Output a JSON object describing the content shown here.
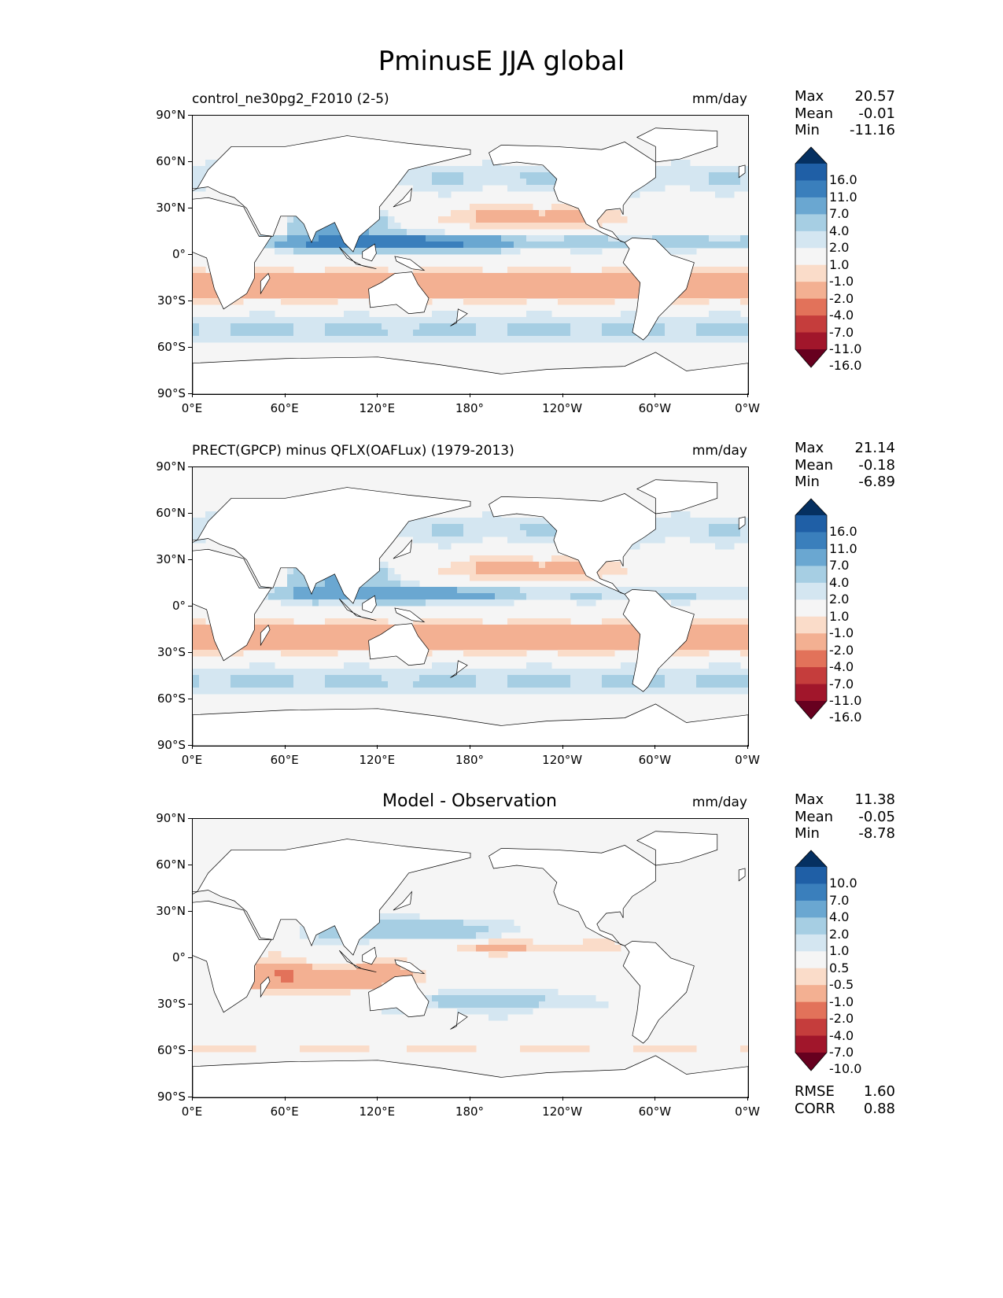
{
  "title": "PminusE JJA global",
  "panels": [
    {
      "left_title": "control_ne30pg2_F2010 (2-5)",
      "center_title": "",
      "units": "mm/day",
      "stats": [
        {
          "label": "Max",
          "value": "20.57"
        },
        {
          "label": "Mean",
          "value": "-0.01"
        },
        {
          "label": "Min",
          "value": "-11.16"
        }
      ],
      "colorbar_ticks": [
        "16.0",
        "11.0",
        "7.0",
        "4.0",
        "2.0",
        "1.0",
        "-1.0",
        "-2.0",
        "-4.0",
        "-7.0",
        "-11.0",
        "-16.0"
      ]
    },
    {
      "left_title": "PRECT(GPCP) minus QFLX(OAFLux) (1979-2013)",
      "center_title": "",
      "units": "mm/day",
      "stats": [
        {
          "label": "Max",
          "value": "21.14"
        },
        {
          "label": "Mean",
          "value": "-0.18"
        },
        {
          "label": "Min",
          "value": "-6.89"
        }
      ],
      "colorbar_ticks": [
        "16.0",
        "11.0",
        "7.0",
        "4.0",
        "2.0",
        "1.0",
        "-1.0",
        "-2.0",
        "-4.0",
        "-7.0",
        "-11.0",
        "-16.0"
      ]
    },
    {
      "left_title": "",
      "center_title": "Model - Observation",
      "units": "mm/day",
      "stats": [
        {
          "label": "Max",
          "value": "11.38"
        },
        {
          "label": "Mean",
          "value": "-0.05"
        },
        {
          "label": "Min",
          "value": "-8.78"
        }
      ],
      "colorbar_ticks": [
        "10.0",
        "7.0",
        "4.0",
        "2.0",
        "1.0",
        "0.5",
        "-0.5",
        "-1.0",
        "-2.0",
        "-4.0",
        "-7.0",
        "-10.0"
      ],
      "metrics": [
        {
          "label": "RMSE",
          "value": "1.60"
        },
        {
          "label": "CORR",
          "value": "0.88"
        }
      ]
    }
  ],
  "lat_ticks": [
    "90°N",
    "60°N",
    "30°N",
    "0°",
    "30°S",
    "60°S",
    "90°S"
  ],
  "lon_ticks": [
    "0°E",
    "60°E",
    "120°E",
    "180°",
    "120°W",
    "60°W",
    "0°W"
  ],
  "colormap": [
    "#053061",
    "#2166ac",
    "#4393c3",
    "#92c5de",
    "#d1e5f0",
    "#f7f7f7",
    "#fddbc7",
    "#f4a582",
    "#d6604d",
    "#b2182b",
    "#67001f"
  ],
  "colorbar_colors": [
    "#053061",
    "#1f5fa6",
    "#3a7fbc",
    "#6aa7d1",
    "#a6cee3",
    "#d4e6f1",
    "#f5f5f5",
    "#fadcc9",
    "#f3b092",
    "#e2725a",
    "#c53d3c",
    "#a1162b",
    "#67001f"
  ]
}
